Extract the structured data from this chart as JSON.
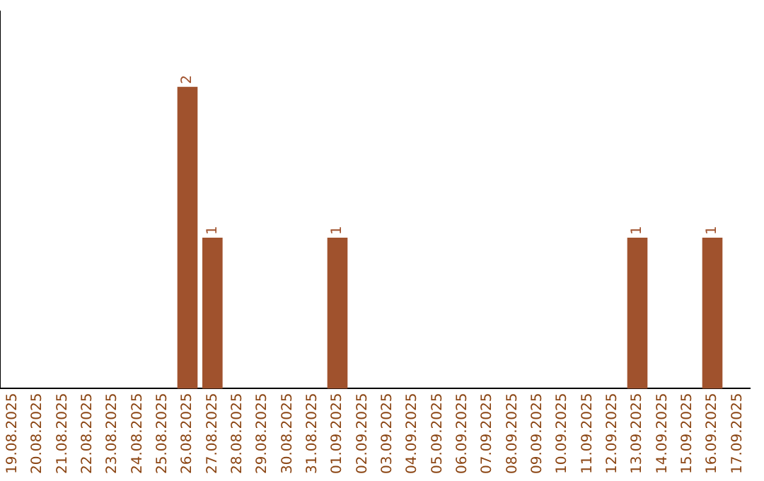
{
  "chart_data": {
    "type": "bar",
    "categories": [
      "19.08.2025",
      "20.08.2025",
      "21.08.2025",
      "22.08.2025",
      "23.08.2025",
      "24.08.2025",
      "25.08.2025",
      "26.08.2025",
      "27.08.2025",
      "28.08.2025",
      "29.08.2025",
      "30.08.2025",
      "31.08.2025",
      "01.09.2025",
      "02.09.2025",
      "03.09.2025",
      "04.09.2025",
      "05.09.2025",
      "06.09.2025",
      "07.09.2025",
      "08.09.2025",
      "09.09.2025",
      "10.09.2025",
      "11.09.2025",
      "12.09.2025",
      "13.09.2025",
      "14.09.2025",
      "15.09.2025",
      "16.09.2025",
      "17.09.2025"
    ],
    "values": [
      0,
      0,
      0,
      0,
      0,
      0,
      0,
      2,
      1,
      0,
      0,
      0,
      0,
      1,
      0,
      0,
      0,
      0,
      0,
      0,
      0,
      0,
      0,
      0,
      0,
      1,
      0,
      0,
      1,
      0
    ],
    "value_labels": [
      null,
      null,
      null,
      null,
      null,
      null,
      null,
      "2",
      "1",
      null,
      null,
      null,
      null,
      "1",
      null,
      null,
      null,
      null,
      null,
      null,
      null,
      null,
      null,
      null,
      null,
      "1",
      null,
      null,
      "1",
      null
    ],
    "color": "#a0522d",
    "grid": false,
    "legend": false,
    "tick_labels": "x"
  }
}
